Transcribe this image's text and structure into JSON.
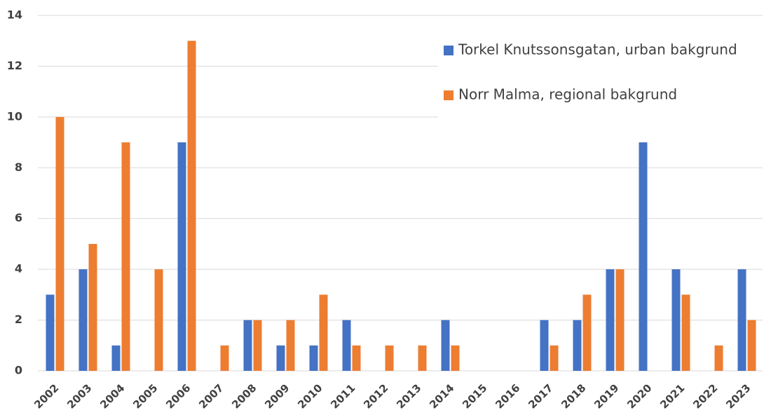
{
  "chart_data": {
    "type": "bar",
    "categories": [
      "2002",
      "2003",
      "2004",
      "2005",
      "2006",
      "2007",
      "2008",
      "2009",
      "2010",
      "2011",
      "2012",
      "2013",
      "2014",
      "2015",
      "2016",
      "2017",
      "2018",
      "2019",
      "2020",
      "2021",
      "2022",
      "2023"
    ],
    "series": [
      {
        "name": "Torkel Knutssonsgatan, urban bakgrund",
        "color": "#4472c4",
        "values": [
          3,
          4,
          1,
          0,
          9,
          0,
          2,
          1,
          1,
          2,
          0,
          0,
          2,
          0,
          0,
          2,
          2,
          4,
          9,
          4,
          0,
          4
        ]
      },
      {
        "name": "Norr Malma, regional bakgrund",
        "color": "#ed7d31",
        "values": [
          10,
          5,
          9,
          4,
          13,
          1,
          2,
          2,
          3,
          1,
          1,
          1,
          1,
          0,
          0,
          1,
          3,
          4,
          0,
          3,
          1,
          2
        ]
      }
    ],
    "ylim": [
      0,
      14
    ],
    "yticks": [
      0,
      2,
      4,
      6,
      8,
      10,
      12,
      14
    ],
    "grid": true,
    "legend": "upper right"
  }
}
